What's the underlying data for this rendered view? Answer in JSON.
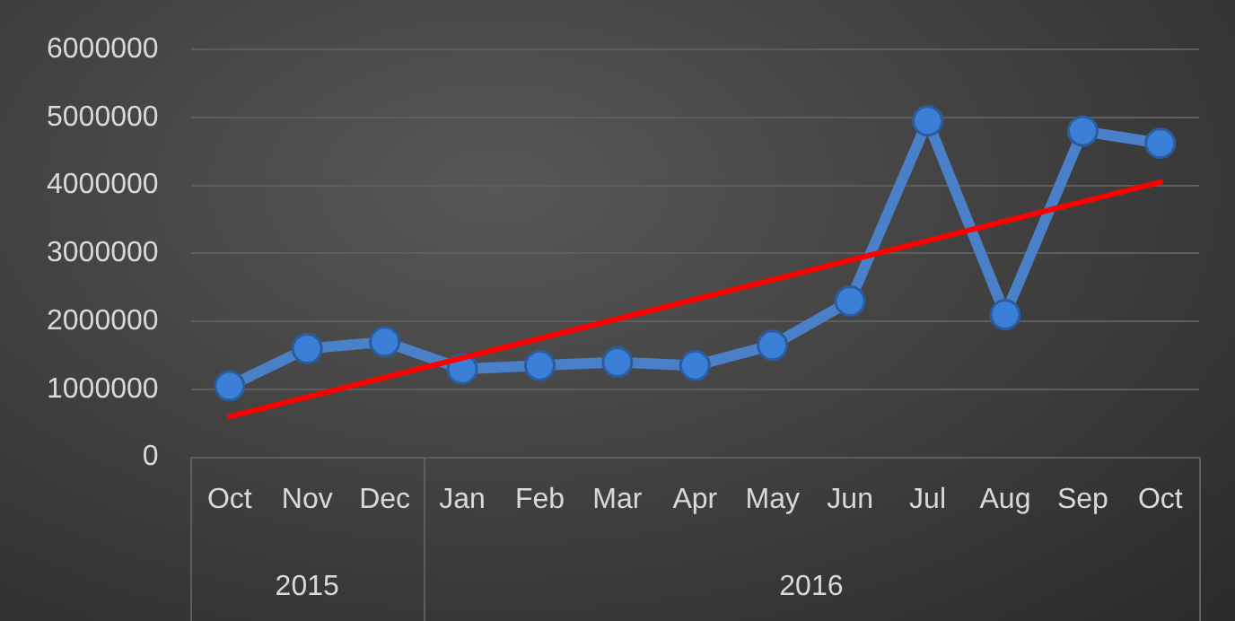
{
  "chart_data": {
    "type": "line",
    "categories": [
      "Oct",
      "Nov",
      "Dec",
      "Jan",
      "Feb",
      "Mar",
      "Apr",
      "May",
      "Jun",
      "Jul",
      "Aug",
      "Sep",
      "Oct"
    ],
    "series": [
      {
        "color": "#4a80c8",
        "values": [
          1050000,
          1600000,
          1700000,
          1300000,
          1350000,
          1400000,
          1350000,
          1650000,
          2300000,
          4950000,
          2100000,
          4800000,
          4620000
        ]
      },
      {
        "type": "line",
        "color": "#ff0000",
        "marker": "none",
        "values": [
          600000,
          null,
          null,
          null,
          null,
          null,
          null,
          null,
          null,
          null,
          null,
          null,
          4050000
        ]
      }
    ],
    "ylim": [
      0,
      6000000
    ],
    "yticks": [
      0,
      1000000,
      2000000,
      3000000,
      4000000,
      5000000,
      6000000
    ],
    "grid": "y",
    "legend": false,
    "marker": "circle",
    "annotations": [
      "2015",
      "2016"
    ]
  }
}
